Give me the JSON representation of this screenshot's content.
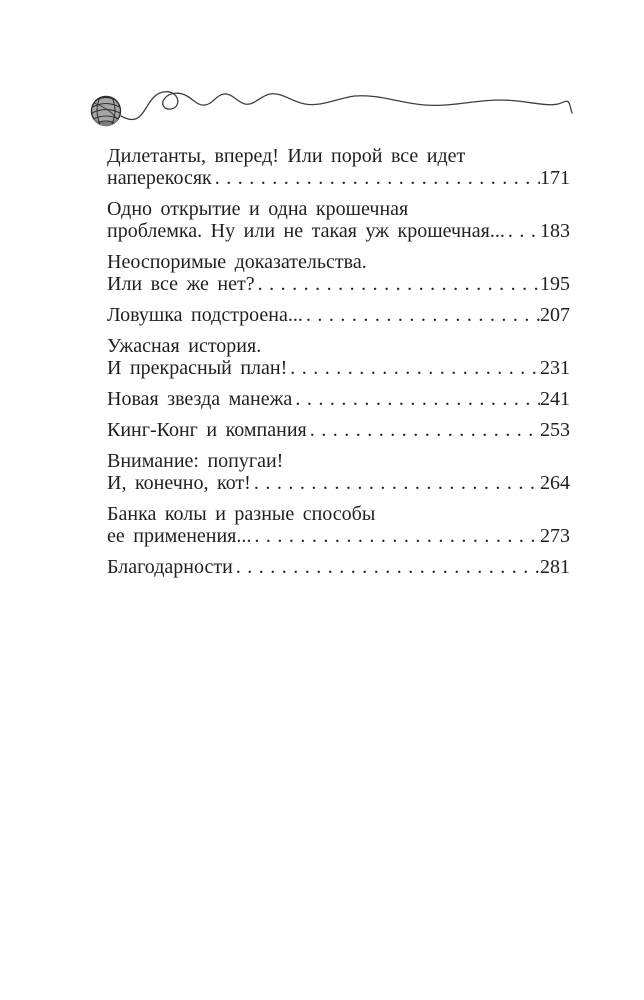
{
  "colors": {
    "background": "#ffffff",
    "text": "#1f1f1f",
    "thread": "#3f3f3f",
    "yarn_ball_fill": "#a6a6a6",
    "yarn_ball_stroke": "#2e2e2e"
  },
  "icons": {
    "ornament": "yarn-ball-with-squiggle-thread"
  },
  "toc": {
    "entries": [
      {
        "lines": [
          "Дилетанты, вперед! Или порой все идет"
        ],
        "last_line": "наперекосяк",
        "page": "171"
      },
      {
        "lines": [
          "Одно открытие и одна крошечная"
        ],
        "last_line": "проблемка. Ну или не такая уж крошечная...",
        "page": "183"
      },
      {
        "lines": [
          "Неоспоримые доказательства."
        ],
        "last_line": "Или все же нет?",
        "page": "195"
      },
      {
        "lines": [],
        "last_line": "Ловушка подстроена...",
        "page": "207"
      },
      {
        "lines": [
          "Ужасная история."
        ],
        "last_line": "И прекрасный план!",
        "page": "231"
      },
      {
        "lines": [],
        "last_line": "Новая звезда манежа",
        "page": "241"
      },
      {
        "lines": [],
        "last_line": "Кинг-Конг и компания",
        "page": "253"
      },
      {
        "lines": [
          "Внимание: попугаи!"
        ],
        "last_line": "И, конечно, кот!",
        "page": "264"
      },
      {
        "lines": [
          "Банка колы и разные способы"
        ],
        "last_line": "ее применения...",
        "page": "273"
      },
      {
        "lines": [],
        "last_line": "Благодарности",
        "page": "281"
      }
    ]
  }
}
